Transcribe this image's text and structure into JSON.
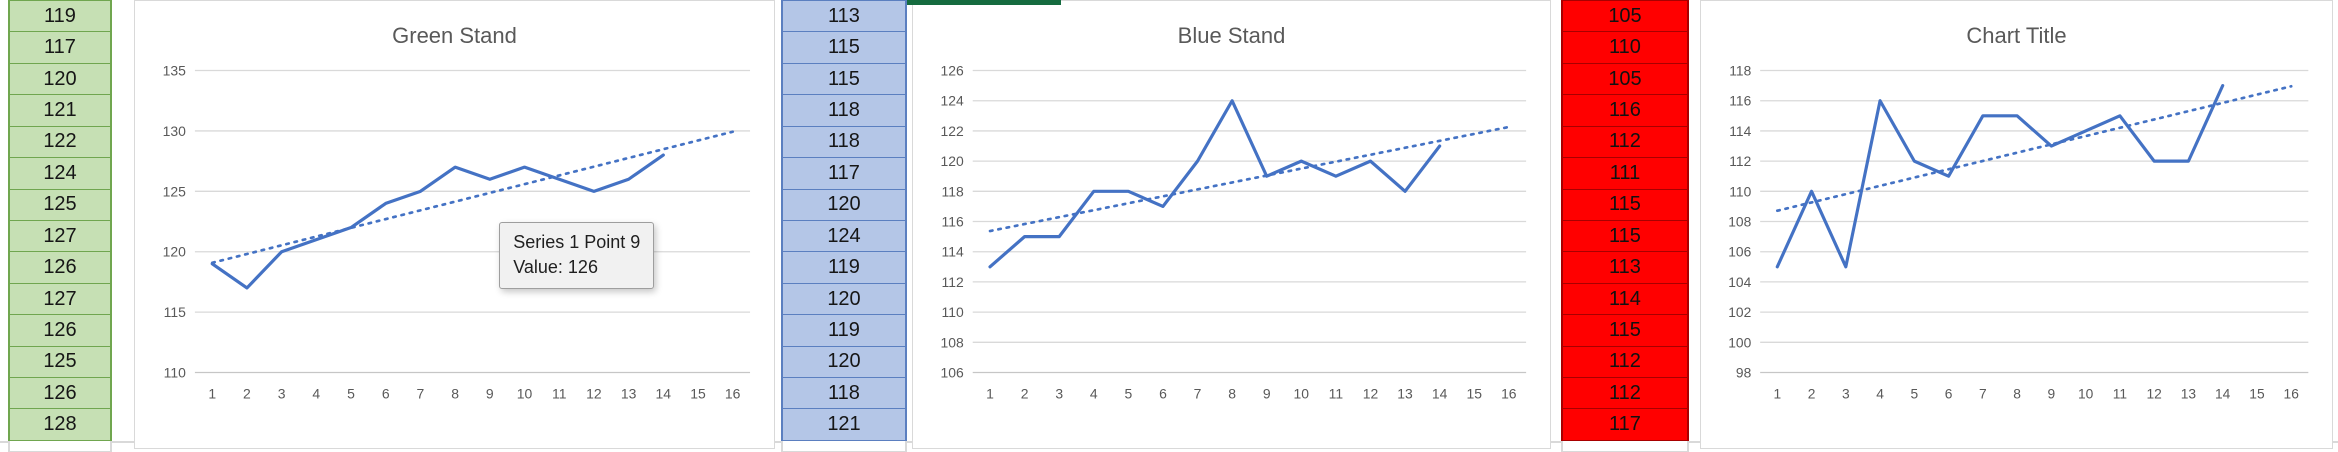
{
  "columns": [
    {
      "label": "green-series-column",
      "fill": "#c6e0b4",
      "border": "#70a64f",
      "text_color": "#161616"
    },
    {
      "label": "blue-series-column",
      "fill": "#b4c6e7",
      "border": "#5b7fc0",
      "text_color": "#161616"
    },
    {
      "label": "red-series-column",
      "fill": "#ff0000",
      "border": "#a80000",
      "text_color": "#111111"
    }
  ],
  "chart_data": [
    {
      "type": "line",
      "title": "Green Stand",
      "x": [
        1,
        2,
        3,
        4,
        5,
        6,
        7,
        8,
        9,
        10,
        11,
        12,
        13,
        14
      ],
      "values": [
        119,
        117,
        120,
        121,
        122,
        124,
        125,
        127,
        126,
        127,
        126,
        125,
        126,
        128
      ],
      "xticks": [
        1,
        2,
        3,
        4,
        5,
        6,
        7,
        8,
        9,
        10,
        11,
        12,
        13,
        14,
        15,
        16
      ],
      "yticks": [
        110,
        115,
        120,
        125,
        130,
        135
      ],
      "ylim": [
        110,
        135
      ],
      "xlim": [
        1,
        16
      ],
      "line_color": "#4472c4",
      "trendline": "linear-dotted",
      "grid": "horizontal",
      "legend": "none",
      "tooltip": {
        "line1": "Series 1 Point 9",
        "line2": "Value: 126"
      }
    },
    {
      "type": "line",
      "title": "Blue Stand",
      "x": [
        1,
        2,
        3,
        4,
        5,
        6,
        7,
        8,
        9,
        10,
        11,
        12,
        13,
        14
      ],
      "values": [
        113,
        115,
        115,
        118,
        118,
        117,
        120,
        124,
        119,
        120,
        119,
        120,
        118,
        121
      ],
      "xticks": [
        1,
        2,
        3,
        4,
        5,
        6,
        7,
        8,
        9,
        10,
        11,
        12,
        13,
        14,
        15,
        16
      ],
      "yticks": [
        106,
        108,
        110,
        112,
        114,
        116,
        118,
        120,
        122,
        124,
        126
      ],
      "ylim": [
        106,
        126
      ],
      "xlim": [
        1,
        16
      ],
      "line_color": "#4472c4",
      "trendline": "linear-dotted",
      "grid": "horizontal",
      "legend": "none"
    },
    {
      "type": "line",
      "title": "Chart Title",
      "x": [
        1,
        2,
        3,
        4,
        5,
        6,
        7,
        8,
        9,
        10,
        11,
        12,
        13,
        14
      ],
      "values": [
        105,
        110,
        105,
        116,
        112,
        111,
        115,
        115,
        113,
        114,
        115,
        112,
        112,
        117
      ],
      "xticks": [
        1,
        2,
        3,
        4,
        5,
        6,
        7,
        8,
        9,
        10,
        11,
        12,
        13,
        14,
        15,
        16
      ],
      "yticks": [
        98,
        100,
        102,
        104,
        106,
        108,
        110,
        112,
        114,
        116,
        118
      ],
      "ylim": [
        98,
        118
      ],
      "xlim": [
        1,
        16
      ],
      "line_color": "#4472c4",
      "trendline": "linear-dotted",
      "grid": "horizontal",
      "legend": "none"
    }
  ]
}
